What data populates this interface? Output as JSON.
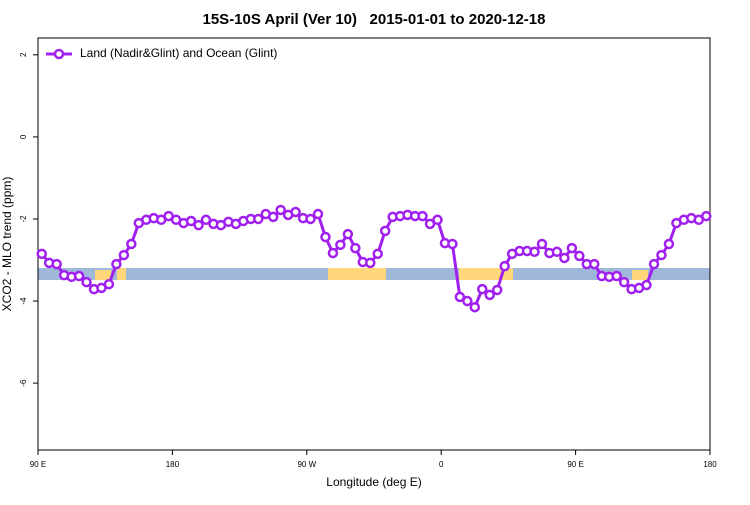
{
  "chart_data": {
    "type": "line",
    "title": "15S-10S April (Ver 10)   2015-01-01 to 2020-12-18",
    "x_label": "Longitude (deg E)",
    "y_label": "XCO2 - MLO trend (ppm)",
    "legend": "top-left",
    "xlim": [
      90,
      540
    ],
    "ylim": [
      -7.63,
      2.41
    ],
    "xticks": [
      {
        "value": 90,
        "label": "90 E"
      },
      {
        "value": 180,
        "label": "180"
      },
      {
        "value": 270,
        "label": "90 W"
      },
      {
        "value": 360,
        "label": "0"
      },
      {
        "value": 450,
        "label": "90 E"
      },
      {
        "value": 540,
        "label": "180"
      }
    ],
    "yticks": [
      -6,
      -4,
      -2,
      0,
      2
    ],
    "x": [
      92.5,
      97.5,
      102.5,
      107.5,
      112.5,
      117.5,
      122.5,
      127.5,
      132.5,
      137.5,
      142.5,
      147.5,
      152.5,
      157.5,
      162.5,
      167.5,
      172.5,
      177.5,
      182.5,
      187.5,
      192.5,
      197.5,
      202.5,
      207.5,
      212.5,
      217.5,
      222.5,
      227.5,
      232.5,
      237.5,
      242.5,
      247.5,
      252.5,
      257.5,
      262.5,
      267.5,
      272.5,
      277.5,
      282.5,
      287.5,
      292.5,
      297.5,
      302.5,
      307.5,
      312.5,
      317.5,
      322.5,
      327.5,
      332.5,
      337.5,
      342.5,
      347.5,
      352.5,
      357.5,
      362.5,
      367.5,
      372.5,
      377.5,
      382.5,
      387.5,
      392.5,
      397.5,
      402.5,
      407.5,
      412.5,
      417.5,
      422.5,
      427.5,
      432.5,
      437.5,
      442.5,
      447.5,
      452.5,
      457.5,
      462.5,
      467.5,
      472.5,
      477.5,
      482.5,
      487.5,
      492.5,
      497.5,
      502.5,
      507.5,
      512.5,
      517.5,
      522.5,
      527.5,
      532.5,
      537.5
    ],
    "series": [
      {
        "name": "Land (Nadir&Glint) and Ocean (Glint)",
        "color": "#a020f0",
        "values": [
          -2.85,
          -3.07,
          -3.1,
          -3.37,
          -3.41,
          -3.39,
          -3.54,
          -3.71,
          -3.68,
          -3.59,
          -3.1,
          -2.88,
          -2.61,
          -2.1,
          -2.02,
          -1.98,
          -2.02,
          -1.93,
          -2.02,
          -2.1,
          -2.05,
          -2.15,
          -2.02,
          -2.12,
          -2.15,
          -2.07,
          -2.12,
          -2.05,
          -2.0,
          -2.0,
          -1.88,
          -1.95,
          -1.78,
          -1.9,
          -1.83,
          -1.98,
          -2.0,
          -1.88,
          -2.44,
          -2.83,
          -2.63,
          -2.37,
          -2.71,
          -3.05,
          -3.07,
          -2.85,
          -2.29,
          -1.95,
          -1.93,
          -1.9,
          -1.93,
          -1.93,
          -2.12,
          -2.02,
          -2.59,
          -2.61,
          -3.9,
          -4.0,
          -4.15,
          -3.71,
          -3.85,
          -3.73,
          -3.15,
          -2.85,
          -2.78,
          -2.78,
          -2.8,
          -2.61,
          -2.83,
          -2.8,
          -2.95,
          -2.71,
          -2.9,
          -3.1,
          -3.1,
          -3.39,
          -3.41,
          -3.39,
          -3.54,
          -3.71,
          -3.68,
          -3.61,
          -3.1,
          -2.88,
          -2.61,
          -2.1,
          -2.02,
          -1.98,
          -2.02,
          -1.93
        ]
      }
    ]
  }
}
